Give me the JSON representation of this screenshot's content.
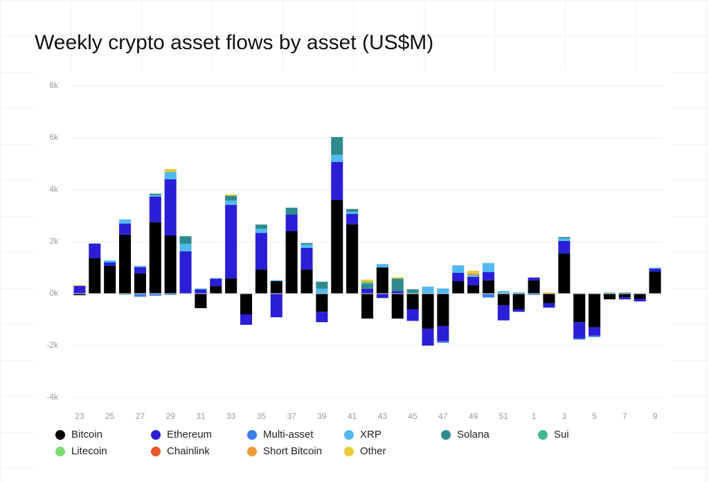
{
  "chart_data": {
    "type": "stacked-bar",
    "title": "Weekly crypto asset flows by asset (US$M)",
    "categories": [
      "23",
      null,
      "25",
      null,
      "27",
      null,
      "29",
      null,
      "31",
      null,
      "33",
      null,
      "35",
      null,
      "37",
      null,
      "39",
      null,
      "41",
      null,
      "43",
      null,
      "45",
      null,
      "47",
      null,
      "49",
      null,
      "51",
      null,
      "1",
      null,
      "3",
      null,
      "5",
      null,
      "7",
      null,
      "9"
    ],
    "ylim": [
      -4000,
      8000
    ],
    "yticks": [
      {
        "value": -4000,
        "label": "-4k"
      },
      {
        "value": -2000,
        "label": "-2k"
      },
      {
        "value": 0,
        "label": "0k"
      },
      {
        "value": 2000,
        "label": "2k"
      },
      {
        "value": 4000,
        "label": "4k"
      },
      {
        "value": 6000,
        "label": "6k"
      },
      {
        "value": 8000,
        "label": "8k"
      }
    ],
    "grid": true,
    "legend": "bottom",
    "series": [
      {
        "name": "Bitcoin",
        "color": "#000000",
        "values": [
          -60,
          1360,
          1070,
          2270,
          780,
          2750,
          2240,
          0,
          -560,
          290,
          590,
          -800,
          930,
          480,
          2400,
          930,
          -700,
          3600,
          2670,
          -960,
          1010,
          -960,
          -600,
          -1350,
          -1250,
          480,
          320,
          510,
          -450,
          -600,
          510,
          -370,
          1550,
          -1100,
          -1300,
          -220,
          -140,
          -200,
          850
        ]
      },
      {
        "name": "Ethereum",
        "color": "#2a1fd6",
        "values": [
          300,
          560,
          130,
          430,
          240,
          990,
          2160,
          1630,
          160,
          290,
          2830,
          -400,
          1410,
          -910,
          640,
          830,
          -400,
          1470,
          400,
          190,
          -170,
          100,
          -450,
          -650,
          -580,
          320,
          320,
          320,
          -580,
          -100,
          110,
          -170,
          480,
          -620,
          -320,
          0,
          -80,
          -100,
          110
        ]
      },
      {
        "name": "Multi-asset",
        "color": "#3c7fe6",
        "values": [
          0,
          0,
          0,
          -40,
          -120,
          -80,
          -50,
          0,
          0,
          0,
          0,
          0,
          0,
          0,
          0,
          0,
          0,
          0,
          0,
          0,
          0,
          0,
          0,
          0,
          -60,
          0,
          0,
          -150,
          0,
          0,
          -50,
          0,
          0,
          -50,
          -50,
          0,
          0,
          0,
          0
        ]
      },
      {
        "name": "XRP",
        "color": "#52b9ee",
        "values": [
          0,
          20,
          80,
          160,
          50,
          50,
          290,
          290,
          40,
          20,
          160,
          0,
          160,
          40,
          0,
          130,
          190,
          270,
          80,
          0,
          130,
          0,
          20,
          270,
          200,
          290,
          80,
          350,
          100,
          50,
          0,
          0,
          100,
          0,
          0,
          20,
          0,
          0,
          40
        ]
      },
      {
        "name": "Solana",
        "color": "#2f8a8f",
        "values": [
          0,
          0,
          0,
          0,
          0,
          60,
          0,
          290,
          0,
          0,
          190,
          0,
          160,
          0,
          270,
          60,
          270,
          690,
          110,
          190,
          0,
          480,
          150,
          0,
          0,
          0,
          0,
          0,
          0,
          0,
          0,
          0,
          50,
          0,
          0,
          20,
          40,
          0,
          0
        ]
      },
      {
        "name": "Sui",
        "color": "#45b78a",
        "values": [
          0,
          0,
          0,
          0,
          0,
          0,
          0,
          0,
          0,
          0,
          0,
          0,
          0,
          0,
          0,
          0,
          0,
          0,
          0,
          60,
          0,
          0,
          0,
          0,
          0,
          0,
          0,
          0,
          0,
          0,
          0,
          0,
          0,
          0,
          0,
          0,
          0,
          0,
          0
        ]
      },
      {
        "name": "Litecoin",
        "color": "#7ddc6f",
        "values": [
          0,
          0,
          0,
          0,
          0,
          0,
          0,
          0,
          0,
          0,
          0,
          0,
          0,
          0,
          0,
          0,
          0,
          0,
          0,
          0,
          0,
          0,
          0,
          0,
          0,
          0,
          0,
          0,
          0,
          0,
          0,
          0,
          0,
          0,
          0,
          0,
          0,
          0,
          0
        ]
      },
      {
        "name": "Chainlink",
        "color": "#e8562a",
        "values": [
          0,
          0,
          0,
          0,
          0,
          0,
          0,
          0,
          0,
          0,
          0,
          0,
          0,
          0,
          0,
          0,
          0,
          0,
          0,
          0,
          0,
          0,
          0,
          0,
          0,
          0,
          0,
          0,
          0,
          0,
          0,
          0,
          0,
          0,
          0,
          0,
          0,
          0,
          0
        ]
      },
      {
        "name": "Short Bitcoin",
        "color": "#f09a37",
        "values": [
          0,
          0,
          0,
          0,
          0,
          0,
          0,
          0,
          0,
          0,
          0,
          0,
          0,
          0,
          0,
          0,
          0,
          0,
          0,
          0,
          0,
          0,
          0,
          0,
          0,
          0,
          60,
          0,
          0,
          0,
          0,
          0,
          0,
          0,
          0,
          0,
          0,
          0,
          0
        ]
      },
      {
        "name": "Other",
        "color": "#ebcc3a",
        "values": [
          20,
          0,
          0,
          0,
          0,
          0,
          110,
          0,
          0,
          0,
          50,
          0,
          0,
          0,
          0,
          0,
          0,
          0,
          0,
          100,
          0,
          50,
          0,
          0,
          0,
          0,
          100,
          0,
          0,
          0,
          0,
          50,
          0,
          0,
          0,
          0,
          0,
          0,
          0
        ]
      }
    ]
  }
}
